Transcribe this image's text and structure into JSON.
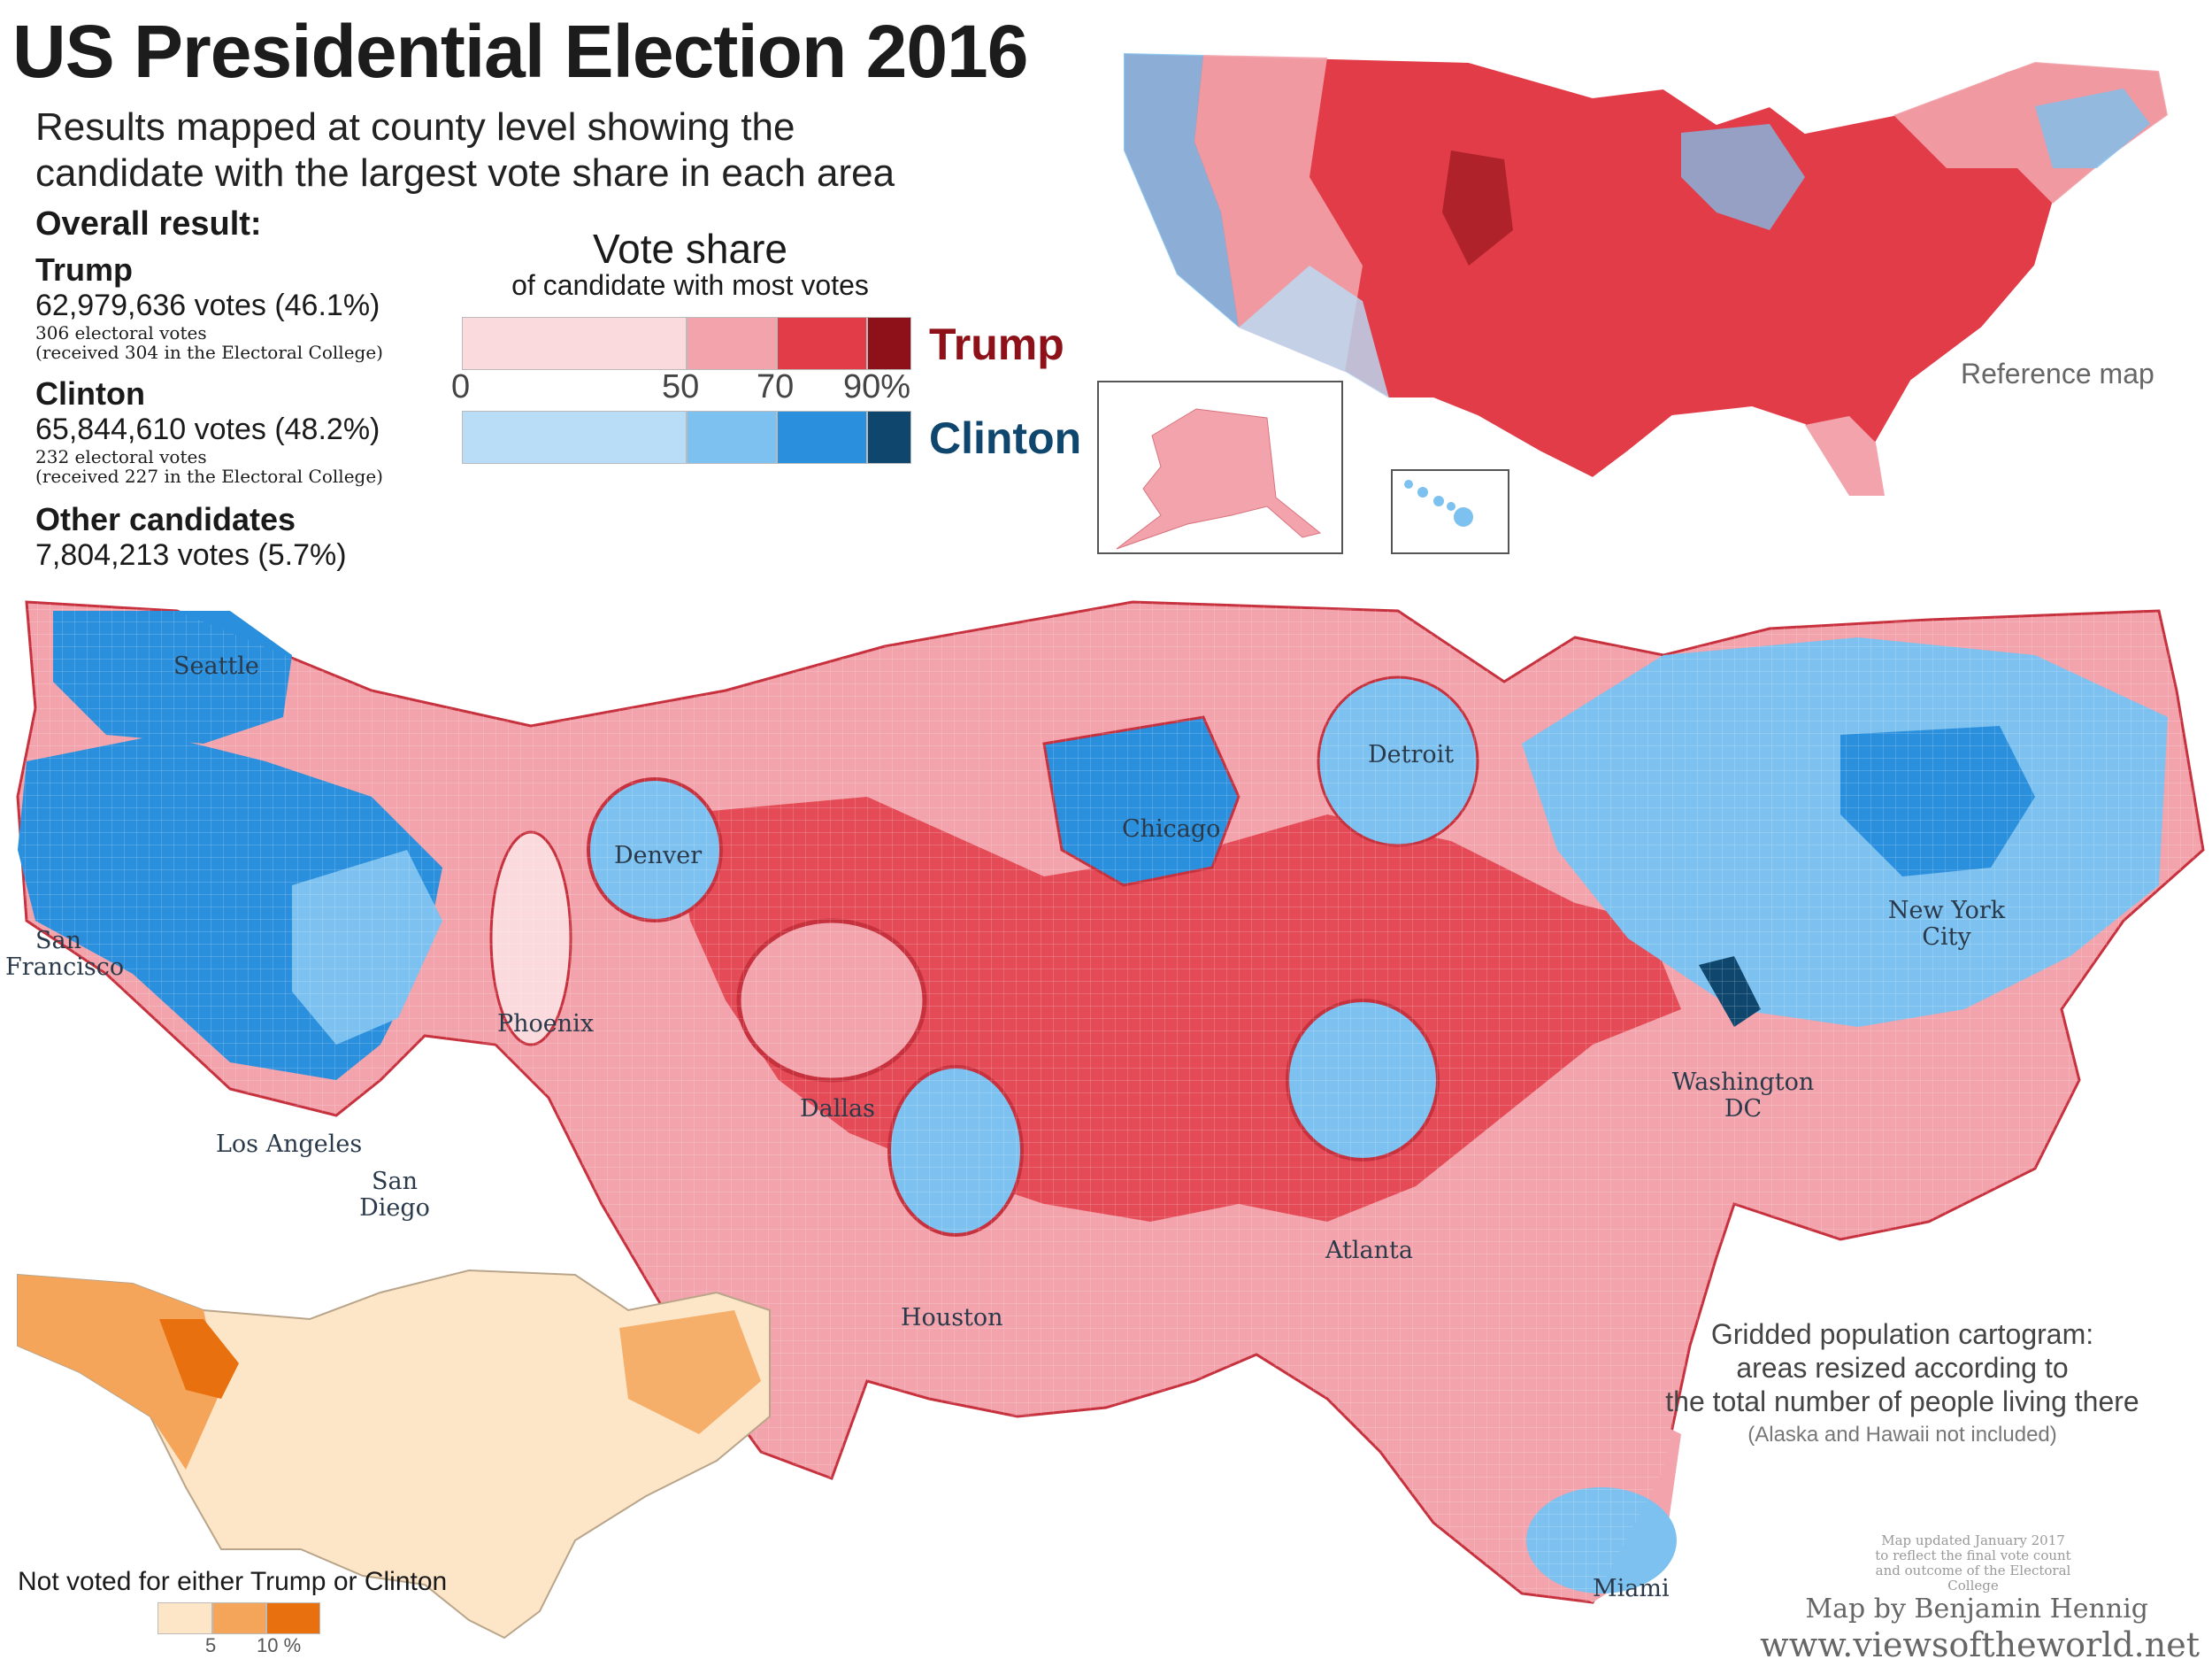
{
  "header": {
    "title": "US Presidential Election 2016",
    "subtitle_line1": "Results mapped at county level showing the",
    "subtitle_line2": "candidate with the largest vote share in each area"
  },
  "overall": {
    "heading": "Overall result:",
    "trump": {
      "name": "Trump",
      "votes": "62,979,636 votes (46.1%)",
      "electoral": "306 electoral votes",
      "received": "(received 304 in the Electoral College)"
    },
    "clinton": {
      "name": "Clinton",
      "votes": "65,844,610 votes (48.2%)",
      "electoral": "232 electoral votes",
      "received": "(received 227 in the Electoral College)"
    },
    "others": {
      "name": "Other candidates",
      "votes": "7,804,213 votes (5.7%)"
    }
  },
  "legend": {
    "title": "Vote share",
    "subtitle": "of candidate with most votes",
    "ticks": [
      "0",
      "50",
      "70",
      "90%"
    ],
    "trump_label": "Trump",
    "clinton_label": "Clinton",
    "trump_colors": [
      "#fadadd",
      "#f2a3ab",
      "#e23c48",
      "#8e1018"
    ],
    "clinton_colors": [
      "#b9ddf7",
      "#7cc1ef",
      "#2a8fdc",
      "#0f466e"
    ]
  },
  "reference_map": {
    "label": "Reference map"
  },
  "cartogram": {
    "cities": [
      "Seattle",
      "San Francisco",
      "Denver",
      "Phoenix",
      "Los Angeles",
      "San Diego",
      "Dallas",
      "Houston",
      "Chicago",
      "Detroit",
      "Atlanta",
      "Miami",
      "New York City",
      "Washington DC"
    ],
    "caption_line1": "Gridded population cartogram:",
    "caption_line2": "areas resized according to",
    "caption_line3": "the total number of people living there",
    "caption_note": "(Alaska and Hawaii not included)"
  },
  "other_votes_map": {
    "title": "Not voted for either Trump or Clinton",
    "ticks": [
      "5",
      "10 %"
    ],
    "colors": [
      "#fde5c8",
      "#f5a55a",
      "#e8700e"
    ]
  },
  "footer": {
    "update_line1": "Map updated January 2017",
    "update_line2": "to reflect the final vote count",
    "update_line3": "and outcome of the Electoral College",
    "author": "Map by Benjamin Hennig",
    "website": "www.viewsoftheworld.net"
  }
}
